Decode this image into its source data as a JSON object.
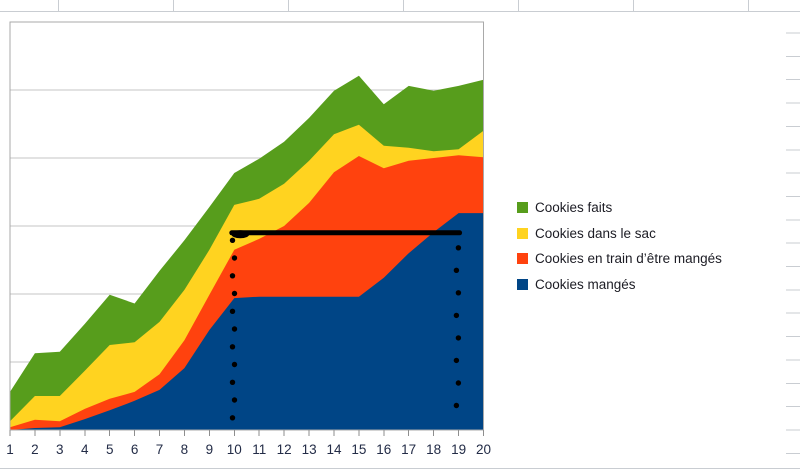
{
  "app": {
    "context_label": "Spreadsheet with embedded stacked area chart"
  },
  "chart_data": {
    "type": "area",
    "stacked": true,
    "title": "",
    "xlabel": "",
    "ylabel": "",
    "categories": [
      "1",
      "2",
      "3",
      "4",
      "5",
      "6",
      "7",
      "8",
      "9",
      "10",
      "11",
      "12",
      "13",
      "14",
      "15",
      "16",
      "17",
      "18",
      "19",
      "20"
    ],
    "y_axis": {
      "tick_labels_visible": false,
      "gridlines_visible": true,
      "gridline_unit": 1,
      "ylim": [
        0,
        6
      ]
    },
    "series": [
      {
        "name": "Cookies mangés",
        "color": "#004586",
        "values": [
          0.0,
          0.03,
          0.04,
          0.16,
          0.29,
          0.43,
          0.59,
          0.91,
          1.47,
          1.94,
          1.96,
          1.96,
          1.96,
          1.96,
          1.96,
          2.24,
          2.6,
          2.91,
          3.19,
          3.19
        ]
      },
      {
        "name": "Cookies en train d’être mangés",
        "color": "#FF420E",
        "values": [
          0.04,
          0.12,
          0.09,
          0.15,
          0.17,
          0.13,
          0.23,
          0.41,
          0.52,
          0.71,
          0.85,
          1.04,
          1.38,
          1.83,
          2.07,
          1.61,
          1.36,
          1.09,
          0.85,
          0.82
        ]
      },
      {
        "name": "Cookies dans le sac",
        "color": "#FFD320",
        "values": [
          0.09,
          0.35,
          0.37,
          0.56,
          0.79,
          0.73,
          0.77,
          0.74,
          0.66,
          0.66,
          0.59,
          0.62,
          0.62,
          0.56,
          0.46,
          0.33,
          0.19,
          0.1,
          0.09,
          0.39
        ]
      },
      {
        "name": "Cookies faits",
        "color": "#579D1C",
        "values": [
          0.43,
          0.63,
          0.65,
          0.69,
          0.74,
          0.57,
          0.75,
          0.73,
          0.63,
          0.47,
          0.59,
          0.62,
          0.63,
          0.64,
          0.72,
          0.61,
          0.91,
          0.89,
          0.93,
          0.75
        ]
      }
    ],
    "legend": {
      "position": "right",
      "items": [
        {
          "label": "Cookies faits",
          "color": "#579D1C"
        },
        {
          "label": "Cookies dans le sac",
          "color": "#FFD320"
        },
        {
          "label": "Cookies en train d’être mangés",
          "color": "#FF420E"
        },
        {
          "label": "Cookies mangés",
          "color": "#004586"
        }
      ]
    },
    "annotation": {
      "color": "#000000",
      "horizontal_line": {
        "from_category": "10",
        "to_category": "19",
        "y_units": 2.9,
        "thickness_px": 5
      },
      "dotted_lines": [
        {
          "at_category": "10",
          "from_y_units": 2.79,
          "to_y_units": 0.18,
          "dots": 11
        },
        {
          "at_category": "19",
          "from_y_units": 2.68,
          "to_y_units": 0.36,
          "dots": 8
        }
      ]
    }
  }
}
